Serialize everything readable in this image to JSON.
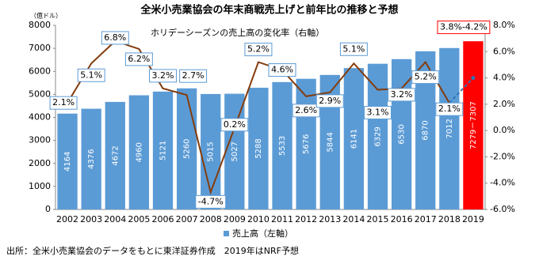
{
  "chart_data": {
    "type": "bar_line",
    "title": "全米小売業協会の年末商戦売上げと前年比の推移と予想",
    "y_label": "（億ドル）",
    "source": "出所：全米小売業協会のデータをもとに東洋証券作成　2019年はNRF予想",
    "categories": [
      "2002",
      "2003",
      "2004",
      "2005",
      "2006",
      "2007",
      "2008",
      "2009",
      "2010",
      "2011",
      "2012",
      "2013",
      "2014",
      "2015",
      "2016",
      "2017",
      "2018",
      "2019"
    ],
    "series": [
      {
        "name": "売上高（左軸）",
        "type": "bar",
        "color": "#5b9bd5",
        "values": [
          4164,
          4376,
          4672,
          4960,
          5121,
          5260,
          5015,
          5027,
          5288,
          5533,
          5676,
          5844,
          6141,
          6329,
          6530,
          6870,
          7012,
          7307
        ],
        "value_labels": [
          "4164",
          "4376",
          "4672",
          "4960",
          "5121",
          "5260",
          "5015",
          "5027",
          "5288",
          "5533",
          "5676",
          "5844",
          "6141",
          "6329",
          "6530",
          "6870",
          "7012",
          "7279－7307"
        ]
      },
      {
        "name": "ホリデーシーズンの売上高の変化率（右軸）",
        "type": "line",
        "axis": "y2",
        "color": "#843c0c",
        "values": [
          2.1,
          5.1,
          6.8,
          6.2,
          3.2,
          2.7,
          -4.7,
          0.2,
          5.2,
          4.6,
          2.6,
          2.9,
          5.1,
          3.1,
          3.2,
          5.2,
          2.1,
          4.0
        ],
        "value_labels": [
          "2.1%",
          "5.1%",
          "6.8%",
          "6.2%",
          "3.2%",
          "2.7%",
          "-4.7%",
          "0.2%",
          "5.2%",
          "4.6%",
          "2.6%",
          "2.9%",
          "5.1%",
          "3.1%",
          "3.2%",
          "5.2%",
          "2.1%",
          "3.8%-4.2%"
        ]
      }
    ],
    "forecast": {
      "index": 17,
      "color": "#ff0000",
      "line_color": "#2e75b6"
    },
    "ylim": [
      0,
      8000
    ],
    "yticks": [
      0,
      1000,
      2000,
      3000,
      4000,
      5000,
      6000,
      7000,
      8000
    ],
    "y2lim": [
      -6,
      8
    ],
    "y2ticks": [
      {
        "value": -6,
        "label": "-6.0%"
      },
      {
        "value": -4,
        "label": "-4.0%"
      },
      {
        "value": -2,
        "label": "-2.0%"
      },
      {
        "value": 0,
        "label": "0.0%"
      },
      {
        "value": 2,
        "label": "2.0%"
      },
      {
        "value": 4,
        "label": "4.0%"
      },
      {
        "value": 6,
        "label": "6.0%"
      },
      {
        "value": 8,
        "label": "8.0%"
      }
    ],
    "legend": "bottom"
  }
}
